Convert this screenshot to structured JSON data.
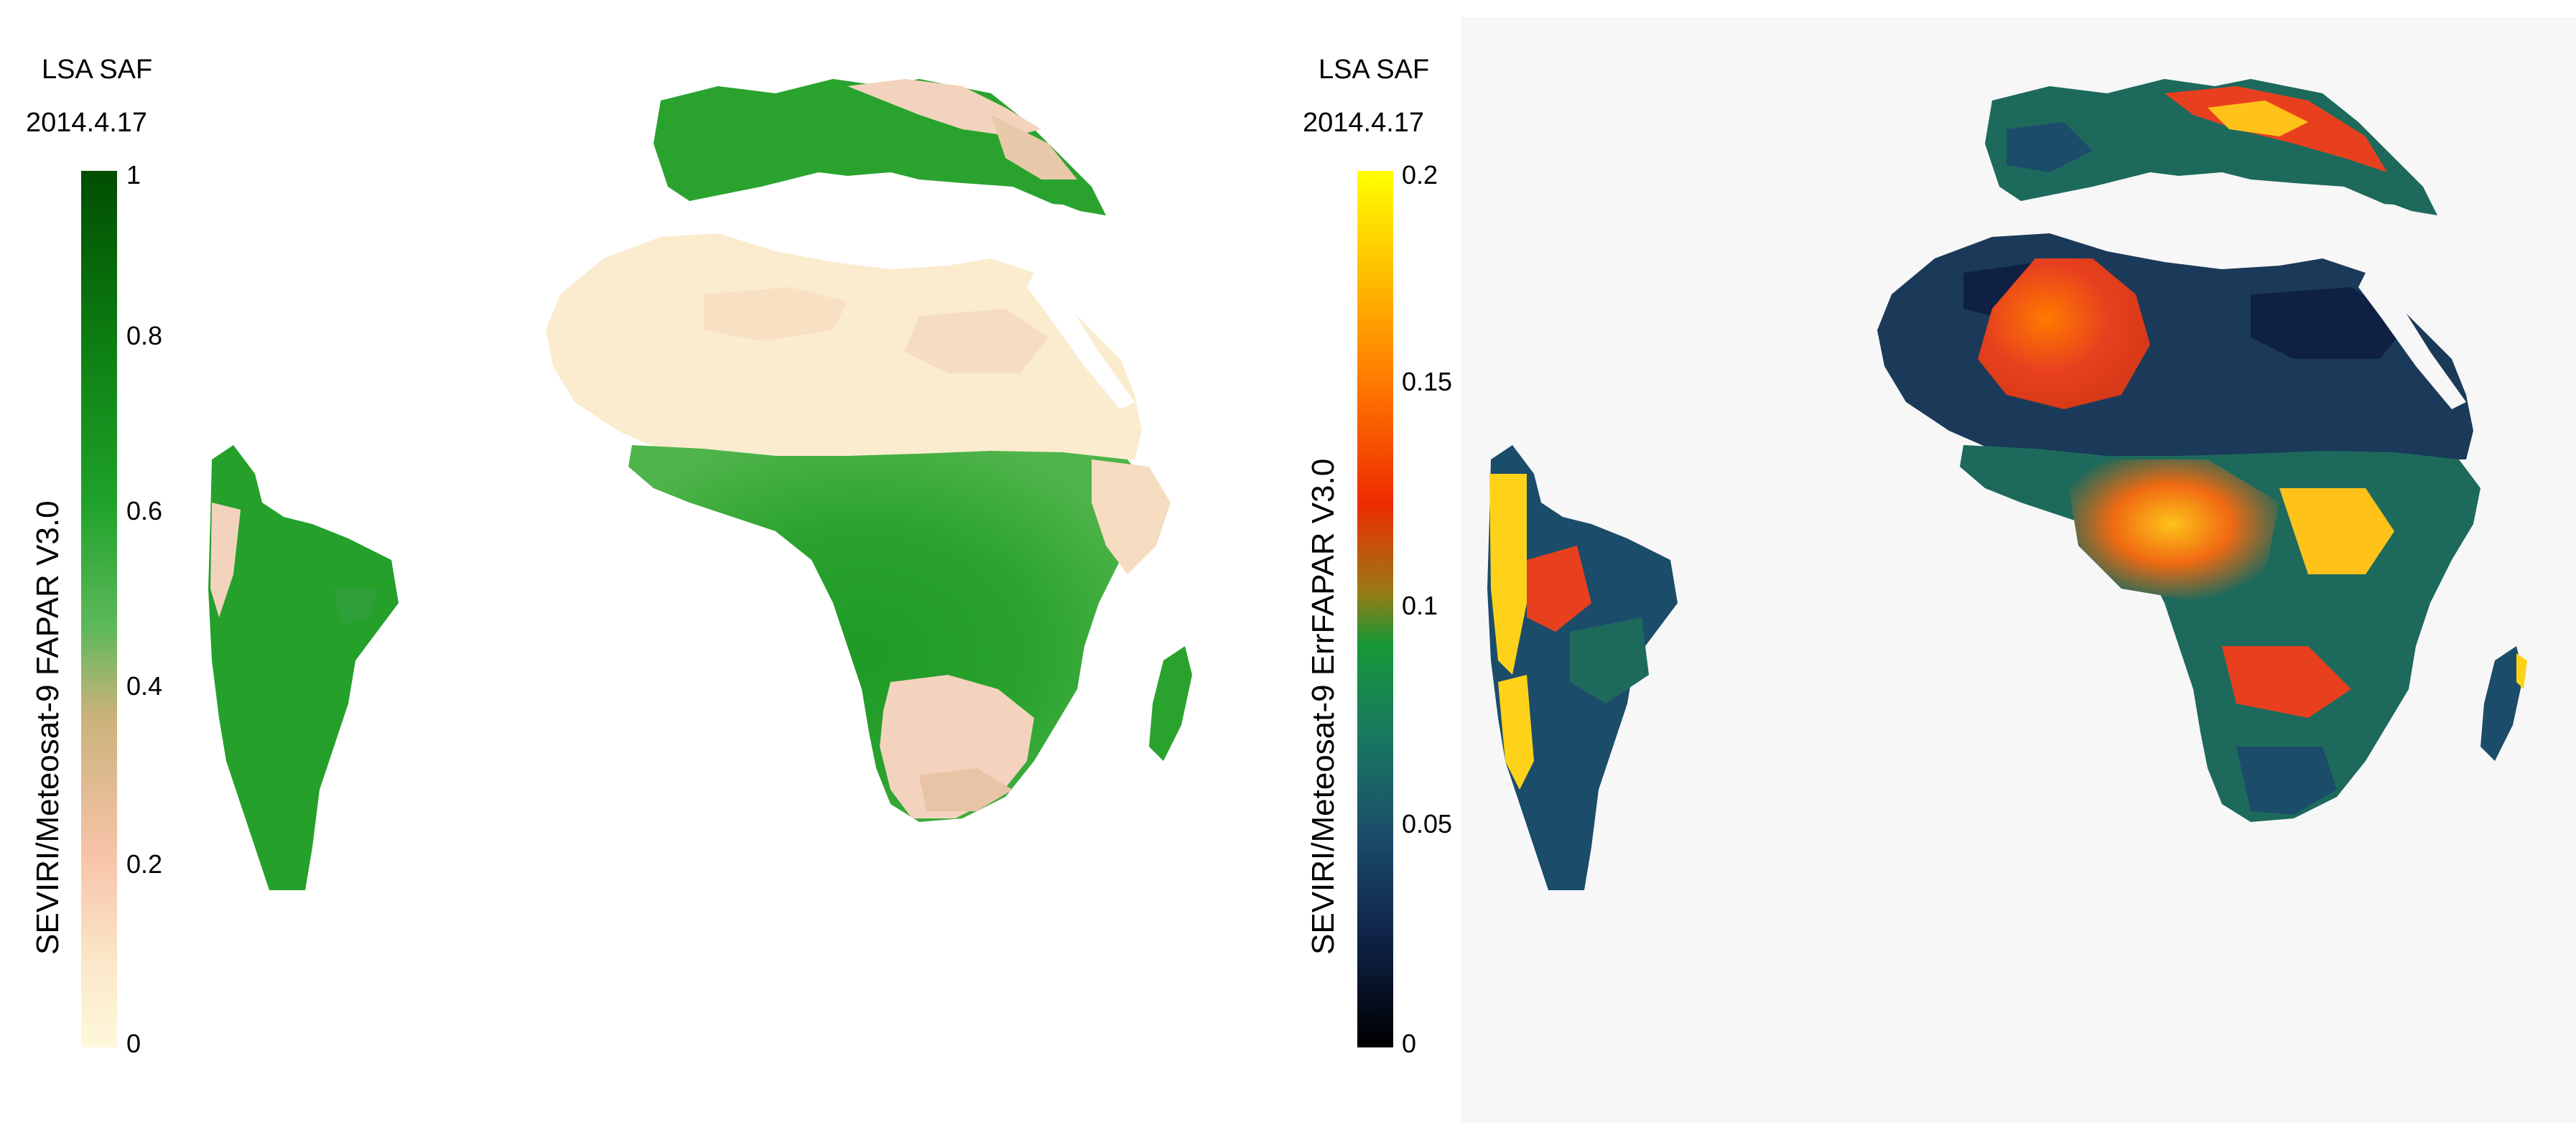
{
  "left_panel": {
    "source": "LSA SAF",
    "date": "2014.4.17",
    "product_label": "SEVIRI/Meteosat-9  FAPAR  V3.0",
    "ticks": [
      "1",
      "0.8",
      "0.6",
      "0.4",
      "0.2",
      "0"
    ],
    "colors": {
      "scale": [
        "#fff8dc",
        "#fbe6c8",
        "#f7c3a8",
        "#c9b27a",
        "#5db85a",
        "#1fa22a",
        "#0d7f12",
        "#004d00"
      ],
      "land_green": "#1f9a26",
      "land_desert": "#fbeccf",
      "land_pink": "#f3d3be"
    }
  },
  "right_panel": {
    "source": "LSA SAF",
    "date": "2014.4.17",
    "product_label": "SEVIRI/Meteosat-9  ErrFAPAR  V3.0",
    "ticks": [
      "0.2",
      "0.15",
      "0.1",
      "0.05",
      "0"
    ],
    "colors": {
      "scale": [
        "#000000",
        "#0e2145",
        "#1b4c6a",
        "#187a60",
        "#169836",
        "#9a7a14",
        "#ee2a00",
        "#ff7a00",
        "#ffc800",
        "#ffff00"
      ],
      "dark_navy": "#10233f",
      "teal": "#1d6a5c",
      "green": "#1d8a3a",
      "red": "#e8401f",
      "yellow": "#ffd21a"
    }
  }
}
